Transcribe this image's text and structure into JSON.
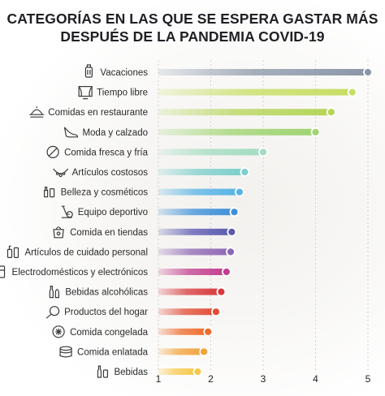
{
  "title_lines": [
    "CATEGORÍAS EN LAS QUE SE ESPERA GASTAR MÁS",
    "DESPUÉS DE LA PANDEMIA COVID-19"
  ],
  "chart_data": {
    "type": "bar",
    "title": "CATEGORÍAS EN LAS QUE SE ESPERA GASTAR MÁS DESPUÉS DE LA PANDEMIA COVID-19",
    "orientation": "horizontal",
    "xlim": [
      1,
      5
    ],
    "x_ticks": [
      "1",
      "2",
      "3",
      "4",
      "5"
    ],
    "grid": "vertical dashed",
    "categories": [
      "Vacaciones",
      "Tiempo libre",
      "Comidas en restaurante",
      "Moda y calzado",
      "Comida fresca y fría",
      "Artículos costosos",
      "Belleza y cosméticos",
      "Equipo deportivo",
      "Comida en tiendas",
      "Artículos de cuidado personal",
      "Electrodomésticos y electrónicos",
      "Bebidas alcohólicas",
      "Productos del hogar",
      "Comida congelada",
      "Comida enlatada",
      "Bebidas"
    ],
    "values": [
      5.0,
      4.7,
      4.3,
      4.0,
      3.0,
      2.65,
      2.55,
      2.45,
      2.4,
      2.38,
      2.3,
      2.2,
      2.1,
      1.95,
      1.87,
      1.75
    ],
    "colors": [
      "#8a96a8",
      "#c6de62",
      "#b4d558",
      "#9fd470",
      "#a3dcc2",
      "#7ccfcb",
      "#56b3e6",
      "#3d8fd8",
      "#5a59b0",
      "#8d67b4",
      "#c33d8e",
      "#d8383c",
      "#e24c36",
      "#ee6b2c",
      "#f2a23a",
      "#f6c84a"
    ],
    "icons": [
      "luggage-icon",
      "theater-icon",
      "restaurant-icon",
      "high-heel-icon",
      "no-food-icon",
      "necklace-icon",
      "cosmetics-icon",
      "exercise-bike-icon",
      "grocery-bag-icon",
      "personal-care-icon",
      "appliances-icon",
      "bottles-icon",
      "frying-pan-icon",
      "frozen-food-icon",
      "canned-food-icon",
      "beverages-icon"
    ]
  }
}
